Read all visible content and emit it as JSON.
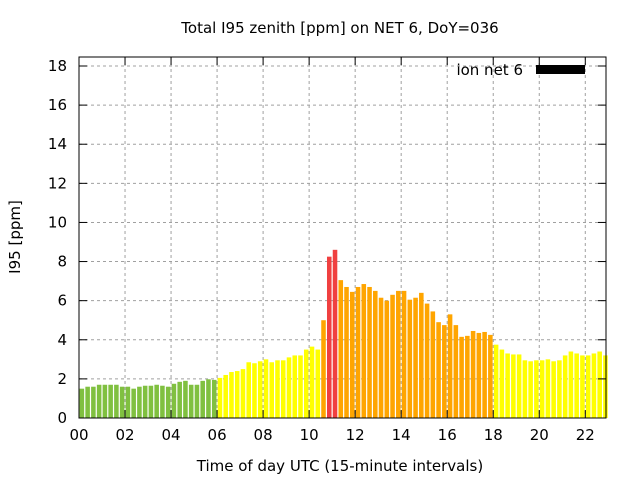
{
  "chart_data": {
    "type": "bar",
    "title": "Total I95 zenith [ppm] on NET 6, DoY=036",
    "xlabel": "Time of day UTC (15-minute intervals)",
    "ylabel": "I95 [ppm]",
    "ylim": [
      0,
      18.46
    ],
    "xlim_hours": [
      0,
      22.9
    ],
    "y_ticks": [
      "0",
      "2",
      "4",
      "6",
      "8",
      "10",
      "12",
      "14",
      "16",
      "18"
    ],
    "x_ticks": [
      "00",
      "02",
      "04",
      "06",
      "08",
      "10",
      "12",
      "14",
      "16",
      "18",
      "20",
      "22"
    ],
    "legend": {
      "label": "ion net 6",
      "placement": "top-right",
      "color": "#000000"
    },
    "grid": true,
    "interval_minutes": 15,
    "color_thresholds": [
      {
        "max": 2,
        "color": "#80c040"
      },
      {
        "max": 4,
        "color": "#ffff00"
      },
      {
        "max": 8,
        "color": "#ffa500"
      },
      {
        "max": 100,
        "color": "#f04040"
      }
    ],
    "values": [
      1.5,
      1.6,
      1.6,
      1.7,
      1.7,
      1.7,
      1.7,
      1.6,
      1.6,
      1.5,
      1.6,
      1.65,
      1.65,
      1.7,
      1.65,
      1.6,
      1.75,
      1.85,
      1.9,
      1.7,
      1.7,
      1.9,
      1.98,
      1.95,
      2.05,
      2.2,
      2.35,
      2.4,
      2.5,
      2.85,
      2.8,
      2.9,
      3.0,
      2.85,
      2.95,
      2.95,
      3.1,
      3.2,
      3.2,
      3.5,
      3.65,
      3.5,
      5.0,
      8.25,
      8.6,
      7.05,
      6.7,
      6.45,
      6.7,
      6.85,
      6.7,
      6.5,
      6.15,
      6.0,
      6.3,
      6.5,
      6.5,
      6.05,
      6.15,
      6.4,
      5.85,
      5.45,
      4.9,
      4.75,
      5.3,
      4.75,
      4.15,
      4.2,
      4.45,
      4.35,
      4.4,
      4.25,
      3.75,
      3.5,
      3.3,
      3.25,
      3.25,
      2.95,
      2.9,
      2.95,
      2.95,
      3.0,
      2.9,
      2.95,
      3.2,
      3.4,
      3.3,
      3.2,
      3.2,
      3.3,
      3.4,
      3.2
    ]
  }
}
